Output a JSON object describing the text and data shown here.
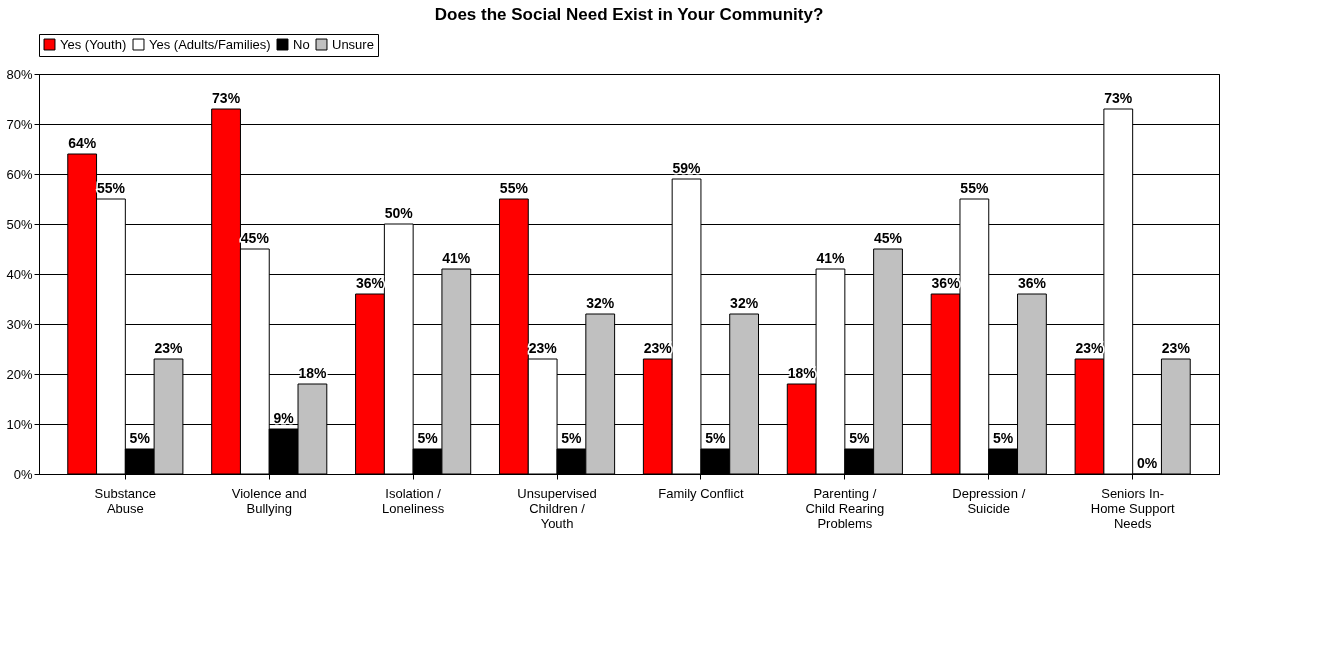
{
  "chart_data": {
    "type": "bar",
    "title": "Does the Social Need Exist in Your Community?",
    "categories": [
      "Substance\nAbuse",
      "Violence and\nBullying",
      "Isolation /\nLoneliness",
      "Unsupervised\nChildren /\nYouth",
      "Family Conflict",
      "Parenting /\nChild Rearing\nProblems",
      "Depression /\nSuicide",
      "Seniors In-\nHome Support\nNeeds"
    ],
    "series": [
      {
        "name": "Yes (Youth)",
        "color": "#ff0000",
        "values": [
          64,
          73,
          36,
          55,
          23,
          18,
          36,
          23
        ],
        "value_labels": [
          "64%",
          "73%",
          "36%",
          "55%",
          "23%",
          "18%",
          "36%",
          "23%"
        ]
      },
      {
        "name": "Yes (Adults/Families)",
        "color": "#ffffff",
        "values": [
          55,
          45,
          50,
          23,
          59,
          41,
          55,
          73
        ],
        "value_labels": [
          "55%",
          "45%",
          "50%",
          "23%",
          "59%",
          "41%",
          "55%",
          "73%"
        ]
      },
      {
        "name": "No",
        "color": "#000000",
        "values": [
          5,
          9,
          5,
          5,
          5,
          5,
          5,
          0
        ],
        "value_labels": [
          "5%",
          "9%",
          "5%",
          "5%",
          "5%",
          "5%",
          "5%",
          "0%"
        ]
      },
      {
        "name": "Unsure",
        "color": "#c0c0c0",
        "values": [
          23,
          18,
          41,
          32,
          32,
          45,
          36,
          23
        ],
        "value_labels": [
          "23%",
          "18%",
          "41%",
          "32%",
          "32%",
          "45%",
          "36%",
          "23%"
        ]
      }
    ],
    "ylim": [
      0,
      80
    ],
    "yticks": [
      {
        "value": 0,
        "label": "0%"
      },
      {
        "value": 10,
        "label": "10%"
      },
      {
        "value": 20,
        "label": "20%"
      },
      {
        "value": 30,
        "label": "30%"
      },
      {
        "value": 40,
        "label": "40%"
      },
      {
        "value": 50,
        "label": "50%"
      },
      {
        "value": 60,
        "label": "60%"
      },
      {
        "value": 70,
        "label": "70%"
      },
      {
        "value": 80,
        "label": "80%"
      }
    ],
    "grid": "y",
    "legend": "top"
  }
}
